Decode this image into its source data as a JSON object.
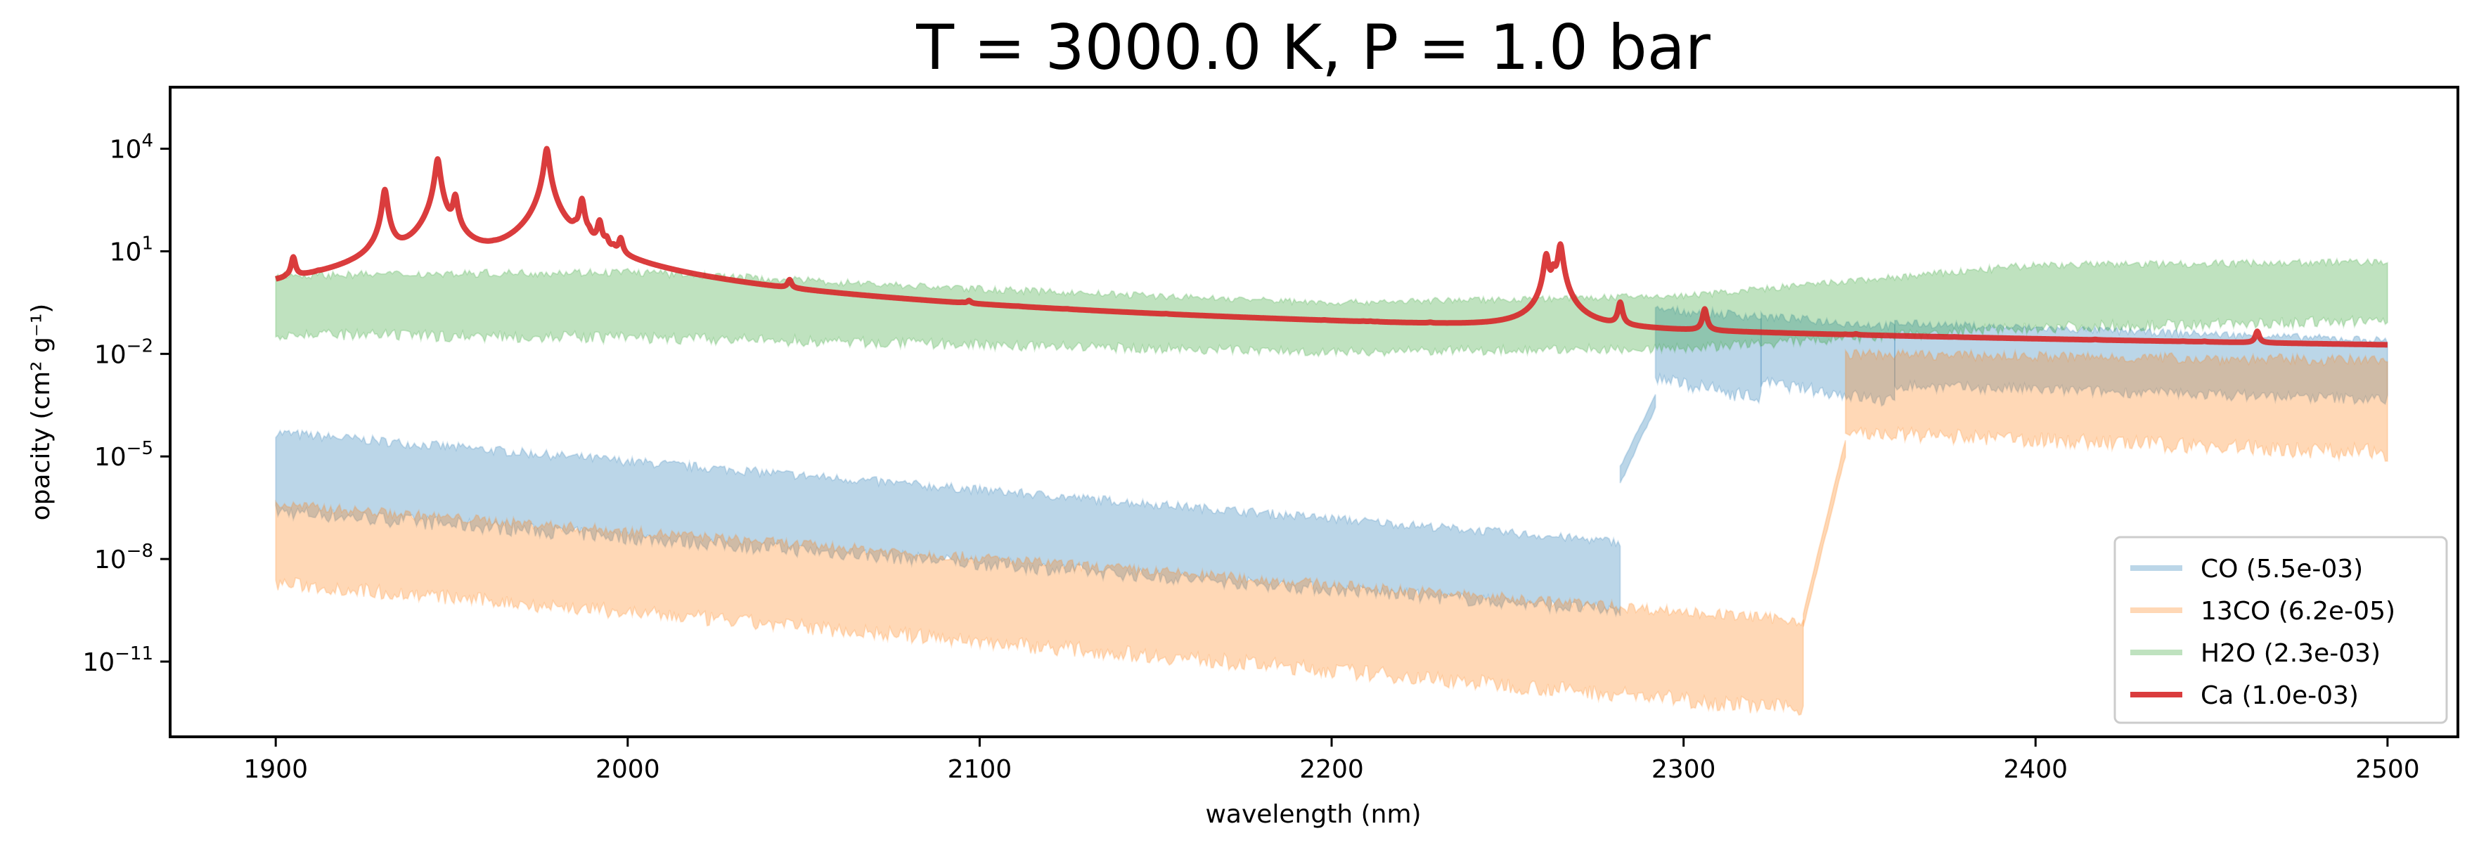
{
  "chart_data": {
    "type": "line",
    "title": "T = 3000.0 K, P = 1.0 bar",
    "xlabel": "wavelength (nm)",
    "ylabel": "opacity (cm² g⁻¹)",
    "xlim": [
      1870,
      2520
    ],
    "ylim_log10": [
      -13.2,
      5.8
    ],
    "yscale": "log",
    "x_ticks": [
      1900,
      2000,
      2100,
      2200,
      2300,
      2400,
      2500
    ],
    "y_ticks": [
      {
        "exp": 4,
        "label": "4"
      },
      {
        "exp": 1,
        "label": "1"
      },
      {
        "exp": -2,
        "label": "−2"
      },
      {
        "exp": -5,
        "label": "−5"
      },
      {
        "exp": -8,
        "label": "−8"
      },
      {
        "exp": -11,
        "label": "−11"
      }
    ],
    "legend_position": "lower-right",
    "series": [
      {
        "name": "CO (5.5e-03)",
        "color": "#1f77b4",
        "opacity": 0.3,
        "band_segments": [
          {
            "x": [
              1900,
              2282
            ],
            "upper_log10": [
              -4.3,
              -7.5
            ],
            "lower_log10": [
              -6.7,
              -9.6
            ]
          },
          {
            "x": [
              2282,
              2292
            ],
            "upper_log10": [
              -5.3,
              -3.2
            ],
            "lower_log10": [
              -5.8,
              -3.6
            ]
          },
          {
            "x": [
              2292,
              2322
            ],
            "upper_log10": [
              -0.7,
              -0.9
            ],
            "lower_log10": [
              -2.8,
              -3.4
            ]
          },
          {
            "x": [
              2322,
              2360
            ],
            "upper_log10": [
              -0.9,
              -1.2
            ],
            "lower_log10": [
              -2.9,
              -3.5
            ]
          },
          {
            "x": [
              2360,
              2500
            ],
            "upper_log10": [
              -1.1,
              -1.6
            ],
            "lower_log10": [
              -3.0,
              -3.4
            ]
          }
        ]
      },
      {
        "name": "13CO (6.2e-05)",
        "color": "#ff7f0e",
        "opacity": 0.3,
        "band_segments": [
          {
            "x": [
              1900,
              2334
            ],
            "upper_log10": [
              -6.4,
              -9.8
            ],
            "lower_log10": [
              -8.8,
              -12.5
            ]
          },
          {
            "x": [
              2334,
              2346
            ],
            "upper_log10": [
              -9.6,
              -4.5
            ],
            "lower_log10": [
              -10.0,
              -5.0
            ]
          },
          {
            "x": [
              2346,
              2500
            ],
            "upper_log10": [
              -2.0,
              -2.2
            ],
            "lower_log10": [
              -4.4,
              -5.0
            ]
          }
        ]
      },
      {
        "name": "H2O (2.3e-03)",
        "color": "#2ca02c",
        "opacity": 0.3,
        "band_segments": [
          {
            "x": [
              1900,
              2000,
              2100,
              2200,
              2300,
              2400,
              2500
            ],
            "upper_log10": [
              0.3,
              0.4,
              -0.1,
              -0.5,
              -0.3,
              0.6,
              0.7
            ],
            "lower_log10": [
              -1.5,
              -1.6,
              -1.8,
              -2.0,
              -1.9,
              -1.3,
              -1.1
            ]
          }
        ]
      },
      {
        "name": "Ca (1.0e-03)",
        "color": "#d62728",
        "opacity": 0.9,
        "baseline": {
          "x": [
            1900,
            1940,
            1990,
            2040,
            2100,
            2200,
            2300,
            2400,
            2500
          ],
          "log10": [
            -2.0,
            -1.2,
            -1.6,
            -2.4,
            -2.7,
            -2.9,
            -3.0,
            -3.1,
            -3.1
          ]
        },
        "peaks": [
          {
            "x": 1903,
            "log10": -1.1
          },
          {
            "x": 1905,
            "log10": 0.7
          },
          {
            "x": 1912,
            "log10": -1.0
          },
          {
            "x": 1927,
            "log10": -0.5
          },
          {
            "x": 1931,
            "log10": 2.8
          },
          {
            "x": 1946,
            "log10": 3.7
          },
          {
            "x": 1951,
            "log10": 2.6
          },
          {
            "x": 1962,
            "log10": -0.4
          },
          {
            "x": 1977,
            "log10": 4.0
          },
          {
            "x": 1985,
            "log10": 1.1
          },
          {
            "x": 1987,
            "log10": 2.5
          },
          {
            "x": 1989,
            "log10": 1.0
          },
          {
            "x": 1992,
            "log10": 1.8
          },
          {
            "x": 1994,
            "log10": 1.0
          },
          {
            "x": 1996,
            "log10": 0.5
          },
          {
            "x": 1998,
            "log10": 1.2
          },
          {
            "x": 2004,
            "log10": -1.7
          },
          {
            "x": 2046,
            "log10": -0.2
          },
          {
            "x": 2049,
            "log10": -2.0
          },
          {
            "x": 2081,
            "log10": -2.6
          },
          {
            "x": 2095,
            "log10": -2.0
          },
          {
            "x": 2097,
            "log10": -1.2
          },
          {
            "x": 2111,
            "log10": -2.3
          },
          {
            "x": 2125,
            "log10": -2.3
          },
          {
            "x": 2153,
            "log10": -2.3
          },
          {
            "x": 2198,
            "log10": -2.5
          },
          {
            "x": 2209,
            "log10": -2.5
          },
          {
            "x": 2211,
            "log10": -2.4
          },
          {
            "x": 2213,
            "log10": -2.6
          },
          {
            "x": 2228,
            "log10": -2.3
          },
          {
            "x": 2261,
            "log10": 0.9
          },
          {
            "x": 2263,
            "log10": 0.4
          },
          {
            "x": 2265,
            "log10": 1.2
          },
          {
            "x": 2282,
            "log10": -0.6
          },
          {
            "x": 2306,
            "log10": -0.8
          },
          {
            "x": 2327,
            "log10": -3.0
          },
          {
            "x": 2346,
            "log10": -2.8
          },
          {
            "x": 2349,
            "log10": -2.5
          },
          {
            "x": 2377,
            "log10": -2.9
          },
          {
            "x": 2417,
            "log10": -2.8
          },
          {
            "x": 2442,
            "log10": -2.9
          },
          {
            "x": 2448,
            "log10": -2.8
          },
          {
            "x": 2463,
            "log10": -1.6
          }
        ]
      }
    ]
  }
}
